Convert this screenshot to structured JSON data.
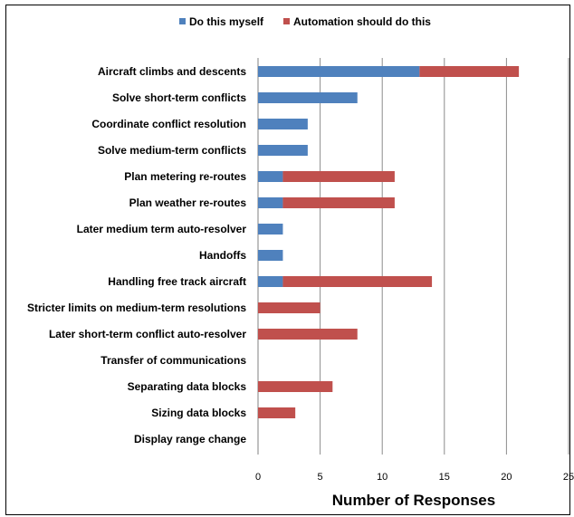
{
  "chart_data": {
    "type": "bar",
    "orientation": "horizontal",
    "stacked": true,
    "categories": [
      "Aircraft climbs and descents",
      "Solve short-term conflicts",
      "Coordinate conflict resolution",
      "Solve medium-term conflicts",
      "Plan metering re-routes",
      "Plan weather re-routes",
      "Later medium term auto-resolver",
      "Handoffs",
      "Handling free track aircraft",
      "Stricter limits on medium-term resolutions",
      "Later short-term conflict auto-resolver",
      "Transfer of communications",
      "Separating data blocks",
      "Sizing data blocks",
      "Display range  change"
    ],
    "series": [
      {
        "name": "Do this myself",
        "color": "#4f81bd",
        "values": [
          13,
          8,
          4,
          4,
          2,
          2,
          2,
          2,
          2,
          0,
          0,
          0,
          0,
          0,
          0
        ]
      },
      {
        "name": "Automation should do this",
        "color": "#c0504d",
        "values": [
          8,
          0,
          0,
          0,
          9,
          9,
          0,
          0,
          12,
          5,
          8,
          0,
          6,
          3,
          0
        ]
      }
    ],
    "xlabel": "Number of Responses",
    "ylabel": "",
    "xlim": [
      0,
      25
    ],
    "xticks": [
      "0",
      "5",
      "10",
      "15",
      "20",
      "25"
    ],
    "grid": "vertical",
    "legend": "top"
  }
}
